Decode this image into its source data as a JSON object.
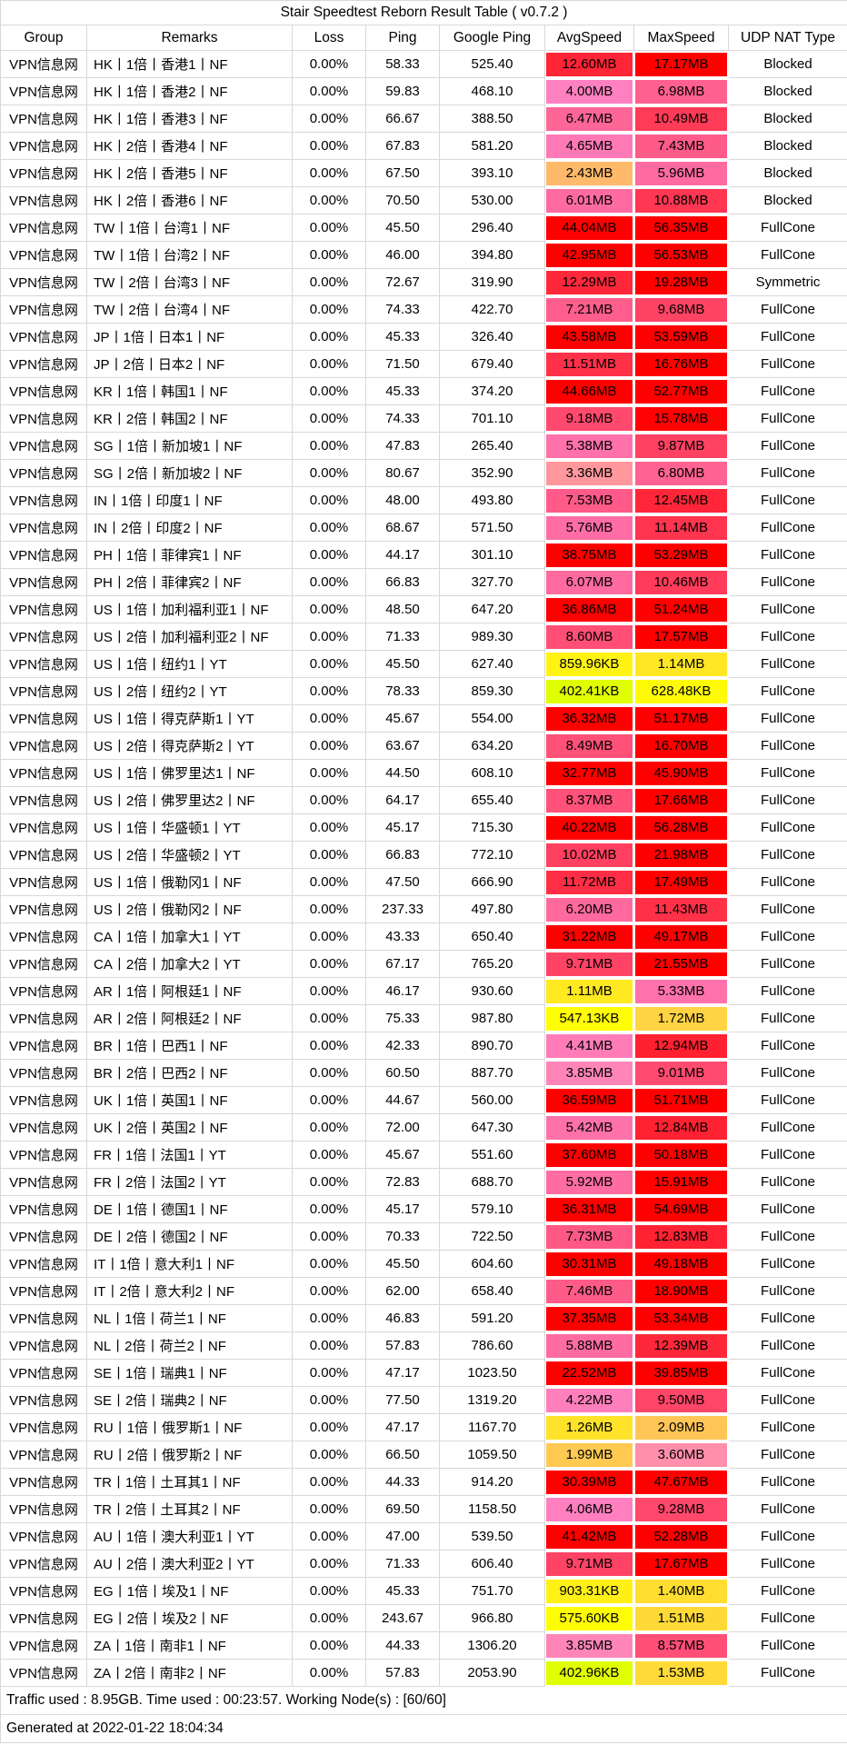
{
  "chart_data": {
    "type": "table",
    "title": "Stair Speedtest Reborn Result Table ( v0.7.2 )",
    "columns": [
      "Group",
      "Remarks",
      "Loss",
      "Ping",
      "Google Ping",
      "AvgSpeed",
      "MaxSpeed",
      "UDP NAT Type"
    ],
    "rows": [
      [
        "VPN信息网",
        "HK丨1倍丨香港1丨NF",
        "0.00%",
        "58.33",
        "525.40",
        "12.60MB",
        "17.17MB",
        "Blocked"
      ],
      [
        "VPN信息网",
        "HK丨1倍丨香港2丨NF",
        "0.00%",
        "59.83",
        "468.10",
        "4.00MB",
        "6.98MB",
        "Blocked"
      ],
      [
        "VPN信息网",
        "HK丨1倍丨香港3丨NF",
        "0.00%",
        "66.67",
        "388.50",
        "6.47MB",
        "10.49MB",
        "Blocked"
      ],
      [
        "VPN信息网",
        "HK丨2倍丨香港4丨NF",
        "0.00%",
        "67.83",
        "581.20",
        "4.65MB",
        "7.43MB",
        "Blocked"
      ],
      [
        "VPN信息网",
        "HK丨2倍丨香港5丨NF",
        "0.00%",
        "67.50",
        "393.10",
        "2.43MB",
        "5.96MB",
        "Blocked"
      ],
      [
        "VPN信息网",
        "HK丨2倍丨香港6丨NF",
        "0.00%",
        "70.50",
        "530.00",
        "6.01MB",
        "10.88MB",
        "Blocked"
      ],
      [
        "VPN信息网",
        "TW丨1倍丨台湾1丨NF",
        "0.00%",
        "45.50",
        "296.40",
        "44.04MB",
        "56.35MB",
        "FullCone"
      ],
      [
        "VPN信息网",
        "TW丨1倍丨台湾2丨NF",
        "0.00%",
        "46.00",
        "394.80",
        "42.95MB",
        "56.53MB",
        "FullCone"
      ],
      [
        "VPN信息网",
        "TW丨2倍丨台湾3丨NF",
        "0.00%",
        "72.67",
        "319.90",
        "12.29MB",
        "19.28MB",
        "Symmetric"
      ],
      [
        "VPN信息网",
        "TW丨2倍丨台湾4丨NF",
        "0.00%",
        "74.33",
        "422.70",
        "7.21MB",
        "9.68MB",
        "FullCone"
      ],
      [
        "VPN信息网",
        "JP丨1倍丨日本1丨NF",
        "0.00%",
        "45.33",
        "326.40",
        "43.58MB",
        "53.59MB",
        "FullCone"
      ],
      [
        "VPN信息网",
        "JP丨2倍丨日本2丨NF",
        "0.00%",
        "71.50",
        "679.40",
        "11.51MB",
        "16.76MB",
        "FullCone"
      ],
      [
        "VPN信息网",
        "KR丨1倍丨韩国1丨NF",
        "0.00%",
        "45.33",
        "374.20",
        "44.66MB",
        "52.77MB",
        "FullCone"
      ],
      [
        "VPN信息网",
        "KR丨2倍丨韩国2丨NF",
        "0.00%",
        "74.33",
        "701.10",
        "9.18MB",
        "15.78MB",
        "FullCone"
      ],
      [
        "VPN信息网",
        "SG丨1倍丨新加坡1丨NF",
        "0.00%",
        "47.83",
        "265.40",
        "5.38MB",
        "9.87MB",
        "FullCone"
      ],
      [
        "VPN信息网",
        "SG丨2倍丨新加坡2丨NF",
        "0.00%",
        "80.67",
        "352.90",
        "3.36MB",
        "6.80MB",
        "FullCone"
      ],
      [
        "VPN信息网",
        "IN丨1倍丨印度1丨NF",
        "0.00%",
        "48.00",
        "493.80",
        "7.53MB",
        "12.45MB",
        "FullCone"
      ],
      [
        "VPN信息网",
        "IN丨2倍丨印度2丨NF",
        "0.00%",
        "68.67",
        "571.50",
        "5.76MB",
        "11.14MB",
        "FullCone"
      ],
      [
        "VPN信息网",
        "PH丨1倍丨菲律宾1丨NF",
        "0.00%",
        "44.17",
        "301.10",
        "38.75MB",
        "53.29MB",
        "FullCone"
      ],
      [
        "VPN信息网",
        "PH丨2倍丨菲律宾2丨NF",
        "0.00%",
        "66.83",
        "327.70",
        "6.07MB",
        "10.46MB",
        "FullCone"
      ],
      [
        "VPN信息网",
        "US丨1倍丨加利福利亚1丨NF",
        "0.00%",
        "48.50",
        "647.20",
        "36.86MB",
        "51.24MB",
        "FullCone"
      ],
      [
        "VPN信息网",
        "US丨2倍丨加利福利亚2丨NF",
        "0.00%",
        "71.33",
        "989.30",
        "8.60MB",
        "17.57MB",
        "FullCone"
      ],
      [
        "VPN信息网",
        "US丨1倍丨纽约1丨YT",
        "0.00%",
        "45.50",
        "627.40",
        "859.96KB",
        "1.14MB",
        "FullCone"
      ],
      [
        "VPN信息网",
        "US丨2倍丨纽约2丨YT",
        "0.00%",
        "78.33",
        "859.30",
        "402.41KB",
        "628.48KB",
        "FullCone"
      ],
      [
        "VPN信息网",
        "US丨1倍丨得克萨斯1丨YT",
        "0.00%",
        "45.67",
        "554.00",
        "36.32MB",
        "51.17MB",
        "FullCone"
      ],
      [
        "VPN信息网",
        "US丨2倍丨得克萨斯2丨YT",
        "0.00%",
        "63.67",
        "634.20",
        "8.49MB",
        "16.70MB",
        "FullCone"
      ],
      [
        "VPN信息网",
        "US丨1倍丨佛罗里达1丨NF",
        "0.00%",
        "44.50",
        "608.10",
        "32.77MB",
        "45.90MB",
        "FullCone"
      ],
      [
        "VPN信息网",
        "US丨2倍丨佛罗里达2丨NF",
        "0.00%",
        "64.17",
        "655.40",
        "8.37MB",
        "17.66MB",
        "FullCone"
      ],
      [
        "VPN信息网",
        "US丨1倍丨华盛顿1丨YT",
        "0.00%",
        "45.17",
        "715.30",
        "40.22MB",
        "56.28MB",
        "FullCone"
      ],
      [
        "VPN信息网",
        "US丨2倍丨华盛顿2丨YT",
        "0.00%",
        "66.83",
        "772.10",
        "10.02MB",
        "21.98MB",
        "FullCone"
      ],
      [
        "VPN信息网",
        "US丨1倍丨俄勒冈1丨NF",
        "0.00%",
        "47.50",
        "666.90",
        "11.72MB",
        "17.49MB",
        "FullCone"
      ],
      [
        "VPN信息网",
        "US丨2倍丨俄勒冈2丨NF",
        "0.00%",
        "237.33",
        "497.80",
        "6.20MB",
        "11.43MB",
        "FullCone"
      ],
      [
        "VPN信息网",
        "CA丨1倍丨加拿大1丨YT",
        "0.00%",
        "43.33",
        "650.40",
        "31.22MB",
        "49.17MB",
        "FullCone"
      ],
      [
        "VPN信息网",
        "CA丨2倍丨加拿大2丨YT",
        "0.00%",
        "67.17",
        "765.20",
        "9.71MB",
        "21.55MB",
        "FullCone"
      ],
      [
        "VPN信息网",
        "AR丨1倍丨阿根廷1丨NF",
        "0.00%",
        "46.17",
        "930.60",
        "1.11MB",
        "5.33MB",
        "FullCone"
      ],
      [
        "VPN信息网",
        "AR丨2倍丨阿根廷2丨NF",
        "0.00%",
        "75.33",
        "987.80",
        "547.13KB",
        "1.72MB",
        "FullCone"
      ],
      [
        "VPN信息网",
        "BR丨1倍丨巴西1丨NF",
        "0.00%",
        "42.33",
        "890.70",
        "4.41MB",
        "12.94MB",
        "FullCone"
      ],
      [
        "VPN信息网",
        "BR丨2倍丨巴西2丨NF",
        "0.00%",
        "60.50",
        "887.70",
        "3.85MB",
        "9.01MB",
        "FullCone"
      ],
      [
        "VPN信息网",
        "UK丨1倍丨英国1丨NF",
        "0.00%",
        "44.67",
        "560.00",
        "36.59MB",
        "51.71MB",
        "FullCone"
      ],
      [
        "VPN信息网",
        "UK丨2倍丨英国2丨NF",
        "0.00%",
        "72.00",
        "647.30",
        "5.42MB",
        "12.84MB",
        "FullCone"
      ],
      [
        "VPN信息网",
        "FR丨1倍丨法国1丨YT",
        "0.00%",
        "45.67",
        "551.60",
        "37.60MB",
        "50.18MB",
        "FullCone"
      ],
      [
        "VPN信息网",
        "FR丨2倍丨法国2丨YT",
        "0.00%",
        "72.83",
        "688.70",
        "5.92MB",
        "15.91MB",
        "FullCone"
      ],
      [
        "VPN信息网",
        "DE丨1倍丨德国1丨NF",
        "0.00%",
        "45.17",
        "579.10",
        "36.31MB",
        "54.69MB",
        "FullCone"
      ],
      [
        "VPN信息网",
        "DE丨2倍丨德国2丨NF",
        "0.00%",
        "70.33",
        "722.50",
        "7.73MB",
        "12.83MB",
        "FullCone"
      ],
      [
        "VPN信息网",
        "IT丨1倍丨意大利1丨NF",
        "0.00%",
        "45.50",
        "604.60",
        "30.31MB",
        "49.18MB",
        "FullCone"
      ],
      [
        "VPN信息网",
        "IT丨2倍丨意大利2丨NF",
        "0.00%",
        "62.00",
        "658.40",
        "7.46MB",
        "18.90MB",
        "FullCone"
      ],
      [
        "VPN信息网",
        "NL丨1倍丨荷兰1丨NF",
        "0.00%",
        "46.83",
        "591.20",
        "37.35MB",
        "53.34MB",
        "FullCone"
      ],
      [
        "VPN信息网",
        "NL丨2倍丨荷兰2丨NF",
        "0.00%",
        "57.83",
        "786.60",
        "5.88MB",
        "12.39MB",
        "FullCone"
      ],
      [
        "VPN信息网",
        "SE丨1倍丨瑞典1丨NF",
        "0.00%",
        "47.17",
        "1023.50",
        "22.52MB",
        "39.85MB",
        "FullCone"
      ],
      [
        "VPN信息网",
        "SE丨2倍丨瑞典2丨NF",
        "0.00%",
        "77.50",
        "1319.20",
        "4.22MB",
        "9.50MB",
        "FullCone"
      ],
      [
        "VPN信息网",
        "RU丨1倍丨俄罗斯1丨NF",
        "0.00%",
        "47.17",
        "1167.70",
        "1.26MB",
        "2.09MB",
        "FullCone"
      ],
      [
        "VPN信息网",
        "RU丨2倍丨俄罗斯2丨NF",
        "0.00%",
        "66.50",
        "1059.50",
        "1.99MB",
        "3.60MB",
        "FullCone"
      ],
      [
        "VPN信息网",
        "TR丨1倍丨土耳其1丨NF",
        "0.00%",
        "44.33",
        "914.20",
        "30.39MB",
        "47.67MB",
        "FullCone"
      ],
      [
        "VPN信息网",
        "TR丨2倍丨土耳其2丨NF",
        "0.00%",
        "69.50",
        "1158.50",
        "4.06MB",
        "9.28MB",
        "FullCone"
      ],
      [
        "VPN信息网",
        "AU丨1倍丨澳大利亚1丨YT",
        "0.00%",
        "47.00",
        "539.50",
        "41.42MB",
        "52.28MB",
        "FullCone"
      ],
      [
        "VPN信息网",
        "AU丨2倍丨澳大利亚2丨YT",
        "0.00%",
        "71.33",
        "606.40",
        "9.71MB",
        "17.67MB",
        "FullCone"
      ],
      [
        "VPN信息网",
        "EG丨1倍丨埃及1丨NF",
        "0.00%",
        "45.33",
        "751.70",
        "903.31KB",
        "1.40MB",
        "FullCone"
      ],
      [
        "VPN信息网",
        "EG丨2倍丨埃及2丨NF",
        "0.00%",
        "243.67",
        "966.80",
        "575.60KB",
        "1.51MB",
        "FullCone"
      ],
      [
        "VPN信息网",
        "ZA丨1倍丨南非1丨NF",
        "0.00%",
        "44.33",
        "1306.20",
        "3.85MB",
        "8.57MB",
        "FullCone"
      ],
      [
        "VPN信息网",
        "ZA丨2倍丨南非2丨NF",
        "0.00%",
        "57.83",
        "2053.90",
        "402.96KB",
        "1.53MB",
        "FullCone"
      ]
    ],
    "footer": [
      "Traffic used : 8.95GB. Time used : 00:23:57. Working Node(s) : [60/60]",
      "Generated at 2022-01-22 18:04:34"
    ],
    "layout_hints": {
      "speed_cells_colored": true,
      "grid": true,
      "legend_position": "none"
    }
  },
  "speed_color_scale": {
    "anchors_kb": [
      0,
      64,
      512,
      4096,
      16384
    ],
    "colors": [
      "#FFFFFF",
      "#80FF00",
      "#FFFF00",
      "#FF80C0",
      "#FF0000"
    ]
  }
}
